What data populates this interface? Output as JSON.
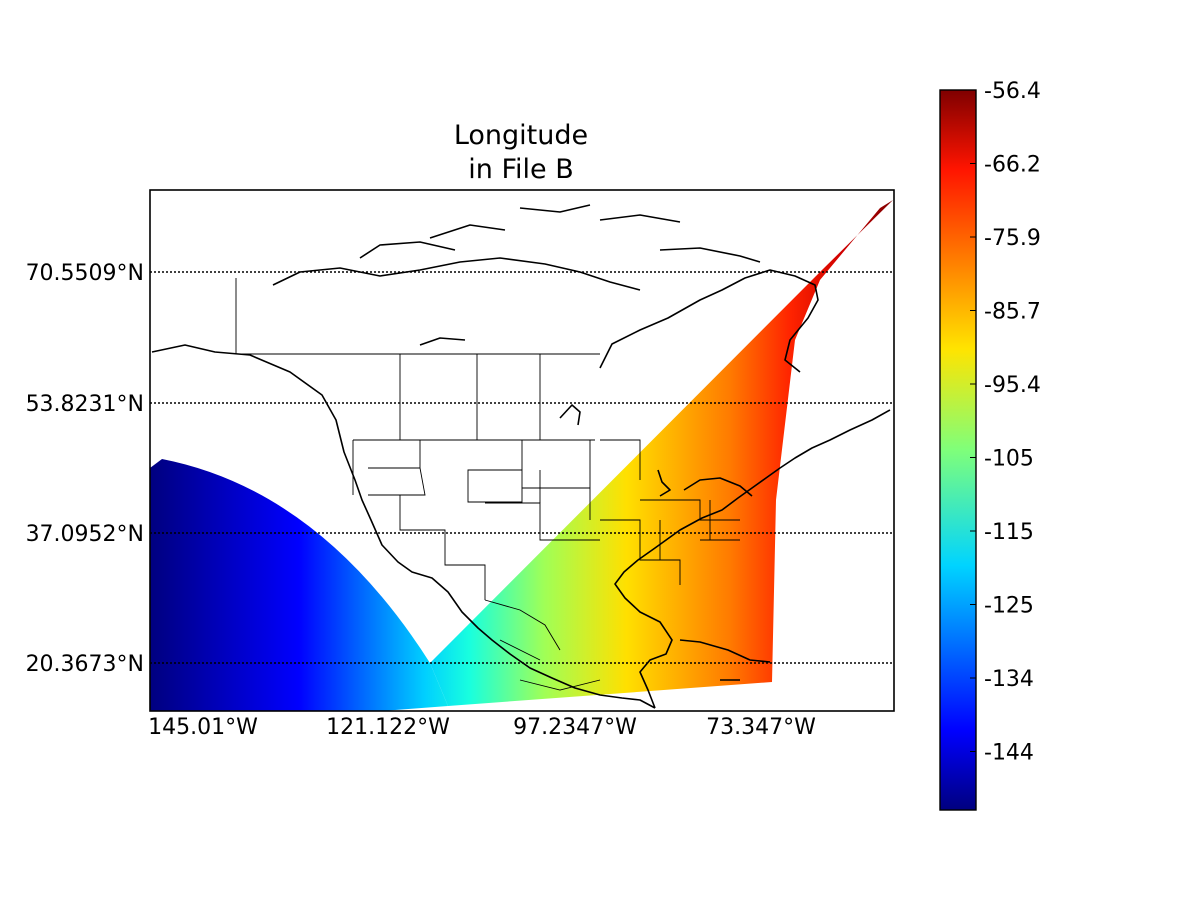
{
  "title_line1": "Longitude",
  "title_line2": "in File B",
  "lat_labels": [
    "70.5509°N",
    "53.8231°N",
    "37.0952°N",
    "20.3673°N"
  ],
  "lon_labels": [
    "145.01°W",
    "121.122°W",
    "97.2347°W",
    "73.347°W"
  ],
  "colorbar": {
    "colormap": "jet",
    "range": [
      -151,
      -56.4
    ],
    "ticks": [
      "-56.4",
      "-66.2",
      "-75.9",
      "-85.7",
      "-95.4",
      "-105",
      "-115",
      "-125",
      "-134",
      "-144"
    ]
  },
  "chart_data": {
    "type": "heatmap",
    "title": "Longitude\nin File B",
    "projection": "cylindrical",
    "parallels": [
      70.5509,
      53.8231,
      37.0952,
      20.3673
    ],
    "meridians": [
      -145.01,
      -121.122,
      -97.2347,
      -73.347
    ],
    "value_range": [
      -151,
      -56.4
    ],
    "grid": "dotted parallels"
  }
}
